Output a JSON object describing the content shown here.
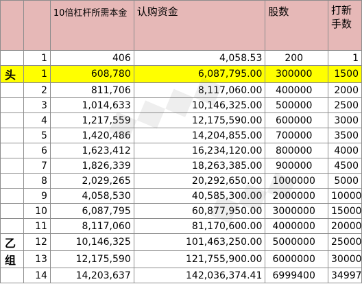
{
  "headers": [
    "",
    "",
    "10倍杠杆所需本金",
    "认购资金",
    "股数",
    "打新手数"
  ],
  "rows": [
    {
      "tag": "",
      "no": "1",
      "principal": "406",
      "subscription": "4,058.53",
      "shares": "200",
      "lots": "1",
      "highlight": false
    },
    {
      "tag": "头",
      "no": "1",
      "principal": "608,780",
      "subscription": "6,087,795.00",
      "shares": "300000",
      "lots": "1500",
      "highlight": true
    },
    {
      "tag": "",
      "no": "2",
      "principal": "811,706",
      "subscription": "8,117,060.00",
      "shares": "400000",
      "lots": "2000",
      "highlight": false
    },
    {
      "tag": "",
      "no": "3",
      "principal": "1,014,633",
      "subscription": "10,146,325.00",
      "shares": "500000",
      "lots": "2500",
      "highlight": false
    },
    {
      "tag": "",
      "no": "4",
      "principal": "1,217,559",
      "subscription": "12,175,590.00",
      "shares": "600000",
      "lots": "3000",
      "highlight": false
    },
    {
      "tag": "",
      "no": "5",
      "principal": "1,420,486",
      "subscription": "14,204,855.00",
      "shares": "700000",
      "lots": "3500",
      "highlight": false
    },
    {
      "tag": "",
      "no": "6",
      "principal": "1,623,412",
      "subscription": "16,234,120.00",
      "shares": "800000",
      "lots": "4000",
      "highlight": false
    },
    {
      "tag": "",
      "no": "7",
      "principal": "1,826,339",
      "subscription": "18,263,385.00",
      "shares": "900000",
      "lots": "4500",
      "highlight": false
    },
    {
      "tag": "",
      "no": "8",
      "principal": "2,029,265",
      "subscription": "20,292,650.00",
      "shares": "1000000",
      "lots": "5000",
      "highlight": false
    },
    {
      "tag": "",
      "no": "9",
      "principal": "4,058,530",
      "subscription": "40,585,300.00",
      "shares": "2000000",
      "lots": "10000",
      "highlight": false
    },
    {
      "tag": "",
      "no": "10",
      "principal": "6,087,795",
      "subscription": "60,877,950.00",
      "shares": "3000000",
      "lots": "15000",
      "highlight": false
    },
    {
      "tag": "",
      "no": "11",
      "principal": "8,117,060",
      "subscription": "81,170,600.00",
      "shares": "4000000",
      "lots": "20000",
      "highlight": false
    },
    {
      "tag": "乙",
      "no": "12",
      "principal": "10,146,325",
      "subscription": "101,463,250.00",
      "shares": "5000000",
      "lots": "25000",
      "highlight": false
    },
    {
      "tag": "组",
      "no": "13",
      "principal": "12,175,590",
      "subscription": "121,755,900.00",
      "shares": "6000000",
      "lots": "30000",
      "highlight": false
    },
    {
      "tag": "",
      "no": "14",
      "principal": "14,203,637",
      "subscription": "142,036,374.41",
      "shares": "6999400",
      "lots": "34997",
      "highlight": false
    }
  ],
  "colors": {
    "header_bg": "#e6b8b7",
    "highlight": "#ffff00",
    "grid": "#8c8c8c"
  }
}
